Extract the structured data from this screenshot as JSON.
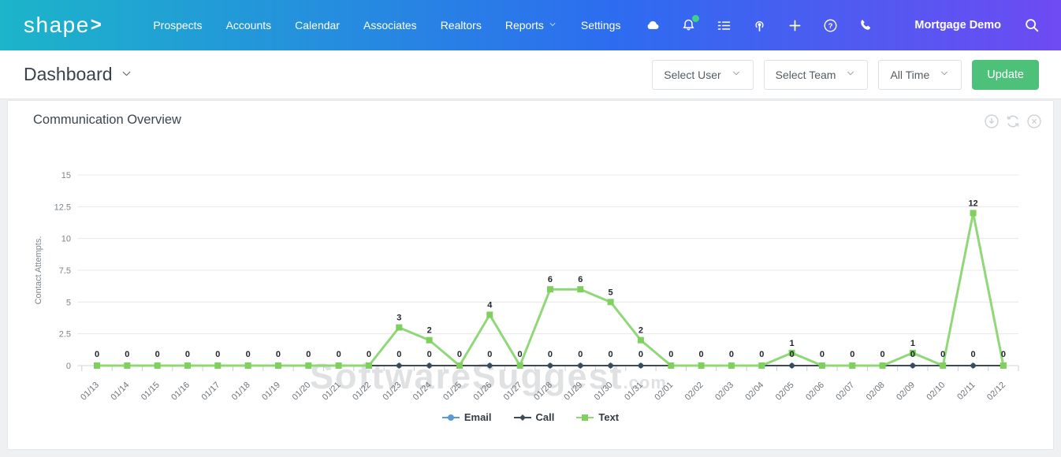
{
  "navbar": {
    "logo_text": "shape",
    "logo_arrow": ">",
    "items": [
      {
        "label": "Prospects",
        "caret": false
      },
      {
        "label": "Accounts",
        "caret": false
      },
      {
        "label": "Calendar",
        "caret": false
      },
      {
        "label": "Associates",
        "caret": false
      },
      {
        "label": "Realtors",
        "caret": false
      },
      {
        "label": "Reports",
        "caret": true
      },
      {
        "label": "Settings",
        "caret": false
      }
    ],
    "icons": [
      "cloud",
      "bell",
      "checklist",
      "podcast",
      "plus",
      "help",
      "phone"
    ],
    "bell_badge_color": "#3fd08b",
    "account_label": "Mortgage Demo"
  },
  "toolbar": {
    "page_title": "Dashboard",
    "filters": [
      {
        "label": "Select User"
      },
      {
        "label": "Select Team"
      },
      {
        "label": "All Time"
      }
    ],
    "update_label": "Update",
    "update_color": "#4dc079"
  },
  "card": {
    "title": "Communication Overview",
    "action_icons": [
      "download-circle",
      "refresh",
      "close-circle"
    ]
  },
  "watermark": {
    "text": "SoftwareSuggest",
    "suffix": ".com"
  },
  "chart_data": {
    "type": "line",
    "title": "Communication Overview",
    "xlabel": "",
    "ylabel": "Contact Attempts.",
    "ylim": [
      0,
      15
    ],
    "yticks": [
      0,
      2.5,
      5,
      7.5,
      10,
      12.5,
      15
    ],
    "grid": true,
    "data_labels": true,
    "legend_position": "bottom",
    "categories": [
      "01/13",
      "01/14",
      "01/15",
      "01/16",
      "01/17",
      "01/18",
      "01/19",
      "01/20",
      "01/21",
      "01/22",
      "01/23",
      "01/24",
      "01/25",
      "01/26",
      "01/27",
      "01/28",
      "01/29",
      "01/30",
      "01/31",
      "02/01",
      "02/02",
      "02/03",
      "02/04",
      "02/05",
      "02/06",
      "02/07",
      "02/08",
      "02/09",
      "02/10",
      "02/11",
      "02/12"
    ],
    "series": [
      {
        "name": "Email",
        "color": "#5b9bd5",
        "marker": "circle",
        "values": [
          0,
          0,
          0,
          0,
          0,
          0,
          0,
          0,
          0,
          0,
          0,
          0,
          0,
          0,
          0,
          0,
          0,
          0,
          0,
          0,
          0,
          0,
          0,
          0,
          0,
          0,
          0,
          0,
          0,
          0,
          0
        ]
      },
      {
        "name": "Call",
        "color": "#3d4a55",
        "marker": "diamond",
        "values": [
          0,
          0,
          0,
          0,
          0,
          0,
          0,
          0,
          0,
          0,
          0,
          0,
          0,
          0,
          0,
          0,
          0,
          0,
          0,
          0,
          0,
          0,
          0,
          0,
          0,
          0,
          0,
          0,
          0,
          0,
          0
        ]
      },
      {
        "name": "Text",
        "color": "#8fd878",
        "marker_color": "#7fd05f",
        "marker": "square",
        "values": [
          0,
          0,
          0,
          0,
          0,
          0,
          0,
          0,
          0,
          0,
          3,
          2,
          0,
          4,
          0,
          6,
          6,
          5,
          2,
          0,
          0,
          0,
          0,
          1,
          0,
          0,
          0,
          1,
          0,
          12,
          0
        ]
      }
    ],
    "data_label_color": "#1f262c",
    "grid_color": "#e8e8e8",
    "axis_text_color": "#7c848b"
  }
}
